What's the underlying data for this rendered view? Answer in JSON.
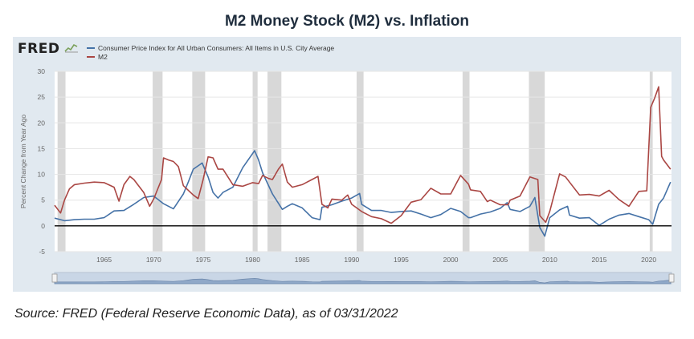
{
  "page_title": "M2 Money Stock (M2) vs. Inflation",
  "brand": {
    "logo_text": "FRED"
  },
  "source_note": "Source: FRED (Federal Reserve Economic Data), as of 03/31/2022",
  "colors": {
    "cpi": "#4572a7",
    "m2": "#aa4643",
    "recession": "#d8d8d8",
    "plot_bg": "#ffffff",
    "panel_bg": "#e1e9f0"
  },
  "chart_data": {
    "type": "line",
    "title": "M2 Money Stock (M2) vs. Inflation",
    "xlabel": "",
    "ylabel": "Percent Change from Year Ago",
    "xlim": [
      1960,
      2022.3
    ],
    "ylim": [
      -5,
      30
    ],
    "yticks": [
      -5,
      0,
      5,
      10,
      15,
      20,
      25,
      30
    ],
    "xticks": [
      1965,
      1970,
      1975,
      1980,
      1985,
      1990,
      1995,
      2000,
      2005,
      2010,
      2015,
      2020
    ],
    "legend_position": "top-left",
    "recessions": [
      [
        1960.3,
        1961.1
      ],
      [
        1969.9,
        1970.9
      ],
      [
        1973.9,
        1975.2
      ],
      [
        1980.0,
        1980.5
      ],
      [
        1981.5,
        1982.9
      ],
      [
        1990.5,
        1991.2
      ],
      [
        2001.2,
        2001.9
      ],
      [
        2007.9,
        2009.5
      ],
      [
        2020.1,
        2020.4
      ]
    ],
    "series": [
      {
        "name": "Consumer Price Index for All Urban Consumers: All Items in U.S. City Average",
        "key": "cpi",
        "x": [
          1960,
          1961,
          1962,
          1963,
          1964,
          1965,
          1966,
          1967,
          1968,
          1969,
          1970,
          1971,
          1972,
          1973,
          1973.5,
          1974,
          1974.9,
          1975.5,
          1976,
          1976.5,
          1977,
          1978,
          1979,
          1980.2,
          1980.6,
          1981,
          1982,
          1983,
          1983.5,
          1984,
          1985,
          1986,
          1986.8,
          1987,
          1988,
          1989,
          1990,
          1990.8,
          1991,
          1992,
          1993,
          1994,
          1995,
          1996,
          1997,
          1998,
          1999,
          2000,
          2001,
          2001.8,
          2002,
          2003,
          2004,
          2005,
          2005.7,
          2006,
          2007,
          2008,
          2008.5,
          2009,
          2009.5,
          2010,
          2011,
          2011.8,
          2012,
          2013,
          2014,
          2015,
          2016,
          2017,
          2018,
          2019,
          2020,
          2020.4,
          2021,
          2021.5,
          2022.2
        ],
        "values": [
          1.5,
          1.0,
          1.2,
          1.3,
          1.3,
          1.6,
          2.9,
          3.0,
          4.2,
          5.5,
          5.8,
          4.3,
          3.3,
          6.2,
          8.5,
          11.0,
          12.2,
          9.5,
          6.5,
          5.4,
          6.5,
          7.5,
          11.3,
          14.6,
          12.8,
          10.3,
          6.2,
          3.2,
          3.8,
          4.3,
          3.5,
          1.6,
          1.2,
          3.6,
          4.1,
          4.8,
          5.4,
          6.3,
          4.2,
          3.0,
          3.0,
          2.6,
          2.8,
          2.9,
          2.3,
          1.6,
          2.2,
          3.4,
          2.8,
          1.6,
          1.6,
          2.3,
          2.7,
          3.4,
          4.5,
          3.2,
          2.8,
          3.8,
          5.5,
          -0.3,
          -2.0,
          1.6,
          3.1,
          3.8,
          2.1,
          1.5,
          1.6,
          0.1,
          1.3,
          2.1,
          2.4,
          1.8,
          1.2,
          0.3,
          4.2,
          5.4,
          8.5
        ]
      },
      {
        "name": "M2",
        "key": "m2",
        "x": [
          1960,
          1960.6,
          1961,
          1961.5,
          1962,
          1963,
          1964,
          1965,
          1966,
          1966.5,
          1967,
          1967.6,
          1968,
          1969,
          1969.6,
          1970,
          1970.8,
          1971,
          1971.5,
          1972,
          1972.5,
          1973,
          1974,
          1974.5,
          1975,
          1975.5,
          1976,
          1976.5,
          1977,
          1978,
          1979,
          1980,
          1980.6,
          1981,
          1981.6,
          1982,
          1982.6,
          1983,
          1983.5,
          1984,
          1985,
          1986,
          1986.6,
          1987,
          1987.6,
          1988,
          1989,
          1989.6,
          1990,
          1991,
          1992,
          1993,
          1994,
          1995,
          1996,
          1997,
          1998,
          1999,
          2000,
          2001,
          2001.8,
          2002,
          2003,
          2003.7,
          2004,
          2005,
          2005.8,
          2006,
          2007,
          2008,
          2008.8,
          2009,
          2009.6,
          2010,
          2011,
          2011.6,
          2012,
          2013,
          2014,
          2015,
          2016,
          2017,
          2018,
          2019,
          2019.8,
          2020.2,
          2020.6,
          2021,
          2021.3,
          2021.5,
          2022.2
        ],
        "values": [
          4.0,
          2.5,
          5.0,
          7.2,
          8.0,
          8.3,
          8.5,
          8.4,
          7.5,
          4.8,
          8.0,
          9.6,
          9.0,
          6.5,
          3.8,
          5.2,
          9.0,
          13.2,
          12.8,
          12.5,
          11.5,
          7.8,
          6.0,
          5.3,
          9.0,
          13.4,
          13.2,
          11.0,
          11.0,
          8.0,
          7.7,
          8.4,
          8.2,
          9.8,
          9.2,
          9.0,
          11.0,
          12.0,
          8.5,
          7.5,
          8.0,
          9.0,
          9.6,
          4.2,
          3.5,
          5.2,
          5.0,
          6.0,
          4.2,
          2.8,
          1.8,
          1.4,
          0.5,
          2.0,
          4.6,
          5.1,
          7.3,
          6.2,
          6.2,
          9.8,
          8.1,
          7.0,
          6.7,
          4.7,
          5.0,
          4.1,
          4.1,
          5.0,
          5.8,
          9.5,
          9.0,
          2.0,
          0.7,
          2.8,
          10.1,
          9.5,
          8.5,
          6.0,
          6.1,
          5.8,
          6.9,
          5.1,
          3.8,
          6.7,
          6.8,
          23.0,
          24.8,
          27.0,
          13.5,
          12.8,
          11.0
        ]
      }
    ]
  }
}
